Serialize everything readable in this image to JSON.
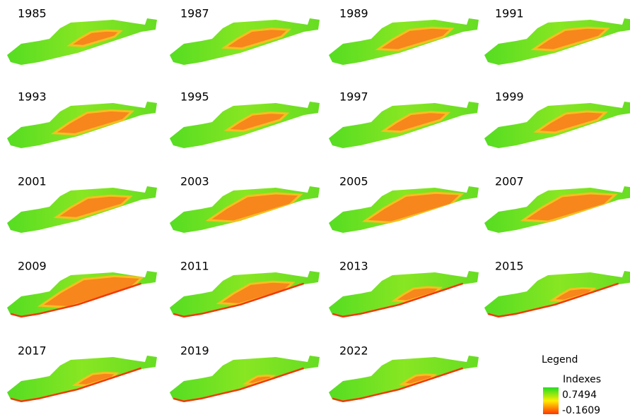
{
  "panels": [
    {
      "year": "1985"
    },
    {
      "year": "1987"
    },
    {
      "year": "1989"
    },
    {
      "year": "1991"
    },
    {
      "year": "1993"
    },
    {
      "year": "1995"
    },
    {
      "year": "1997"
    },
    {
      "year": "1999"
    },
    {
      "year": "2001"
    },
    {
      "year": "2003"
    },
    {
      "year": "2005"
    },
    {
      "year": "2007"
    },
    {
      "year": "2009"
    },
    {
      "year": "2011"
    },
    {
      "year": "2013"
    },
    {
      "year": "2015"
    },
    {
      "year": "2017"
    },
    {
      "year": "2019"
    },
    {
      "year": "2022"
    }
  ],
  "legend": {
    "title": "Legend",
    "field": "Indexes",
    "max": 0.7494,
    "min": -0.1609
  }
}
